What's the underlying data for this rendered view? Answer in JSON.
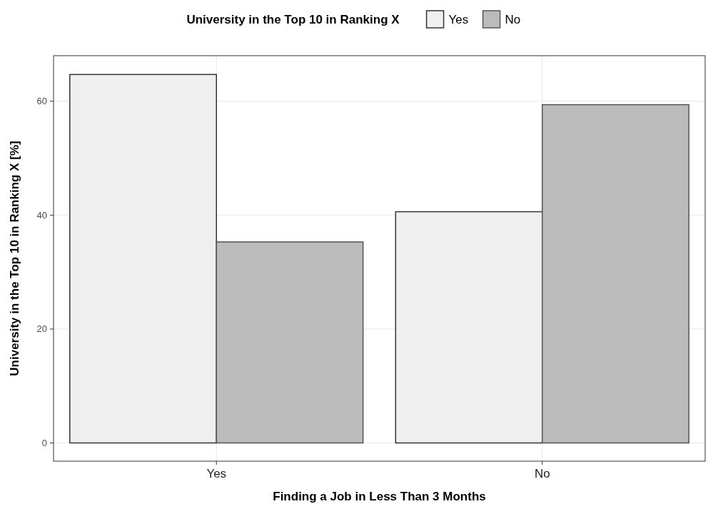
{
  "chart_data": {
    "type": "bar",
    "xlabel": "Finding a Job in Less Than 3 Months",
    "ylabel": "University in the Top 10 in Ranking X [%]",
    "legend_title": "University in the Top 10 in Ranking X",
    "categories": [
      "Yes",
      "No"
    ],
    "series": [
      {
        "name": "Yes",
        "color": "#efefef",
        "values": [
          64.7,
          40.6
        ]
      },
      {
        "name": "No",
        "color": "#bbbbbb",
        "values": [
          35.3,
          59.4
        ]
      }
    ],
    "ylim": [
      -3.2,
      68
    ],
    "yticks": [
      0,
      20,
      40,
      60
    ],
    "grid": true,
    "legend": "top"
  }
}
